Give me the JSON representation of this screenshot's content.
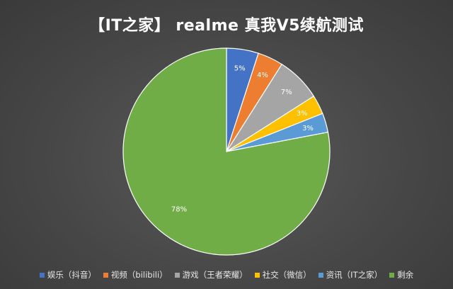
{
  "chart_data": {
    "type": "pie",
    "title": "【IT之家】 realme 真我V5续航测试",
    "categories": [
      "娱乐（抖音）",
      "视频（bilibili）",
      "游戏（王者荣耀）",
      "社交（微信）",
      "资讯（IT之家）",
      "剩余"
    ],
    "values": [
      5,
      4,
      7,
      3,
      3,
      78
    ],
    "labels": [
      "5%",
      "4%",
      "7%",
      "3%",
      "3%",
      "78%"
    ],
    "colors": [
      "#4472C4",
      "#ED7D31",
      "#A5A5A5",
      "#FFC000",
      "#5B9BD5",
      "#70AD47"
    ],
    "legend": "bottom",
    "start_angle": "top, clockwise"
  }
}
